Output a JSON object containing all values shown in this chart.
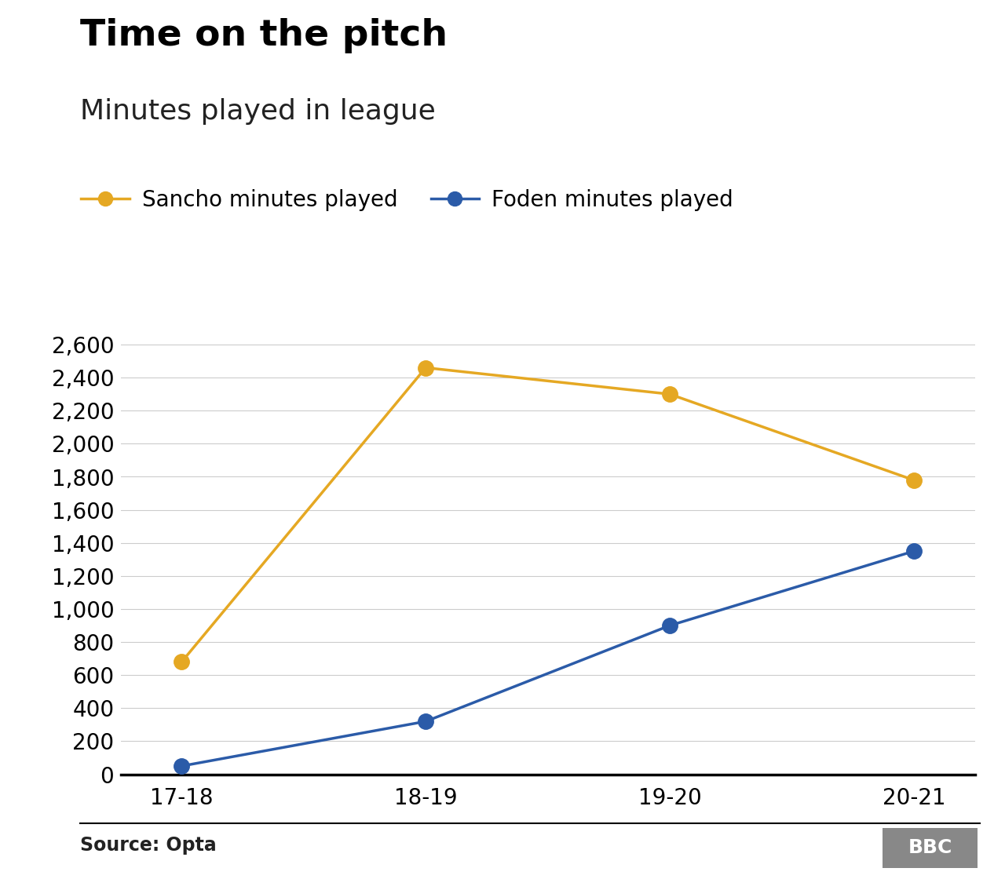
{
  "title": "Time on the pitch",
  "subtitle": "Minutes played in league",
  "seasons": [
    "17-18",
    "18-19",
    "19-20",
    "20-21"
  ],
  "sancho": [
    680,
    2460,
    2300,
    1780
  ],
  "foden": [
    50,
    320,
    900,
    1350
  ],
  "sancho_color": "#E5A823",
  "foden_color": "#2B5BA8",
  "ylim": [
    0,
    2800
  ],
  "yticks": [
    0,
    200,
    400,
    600,
    800,
    1000,
    1200,
    1400,
    1600,
    1800,
    2000,
    2200,
    2400,
    2600
  ],
  "source_text": "Source: Opta",
  "background_color": "#ffffff",
  "line_width": 2.5,
  "marker_size": 14,
  "title_fontsize": 34,
  "subtitle_fontsize": 26,
  "legend_fontsize": 20,
  "tick_fontsize": 20,
  "source_fontsize": 17
}
